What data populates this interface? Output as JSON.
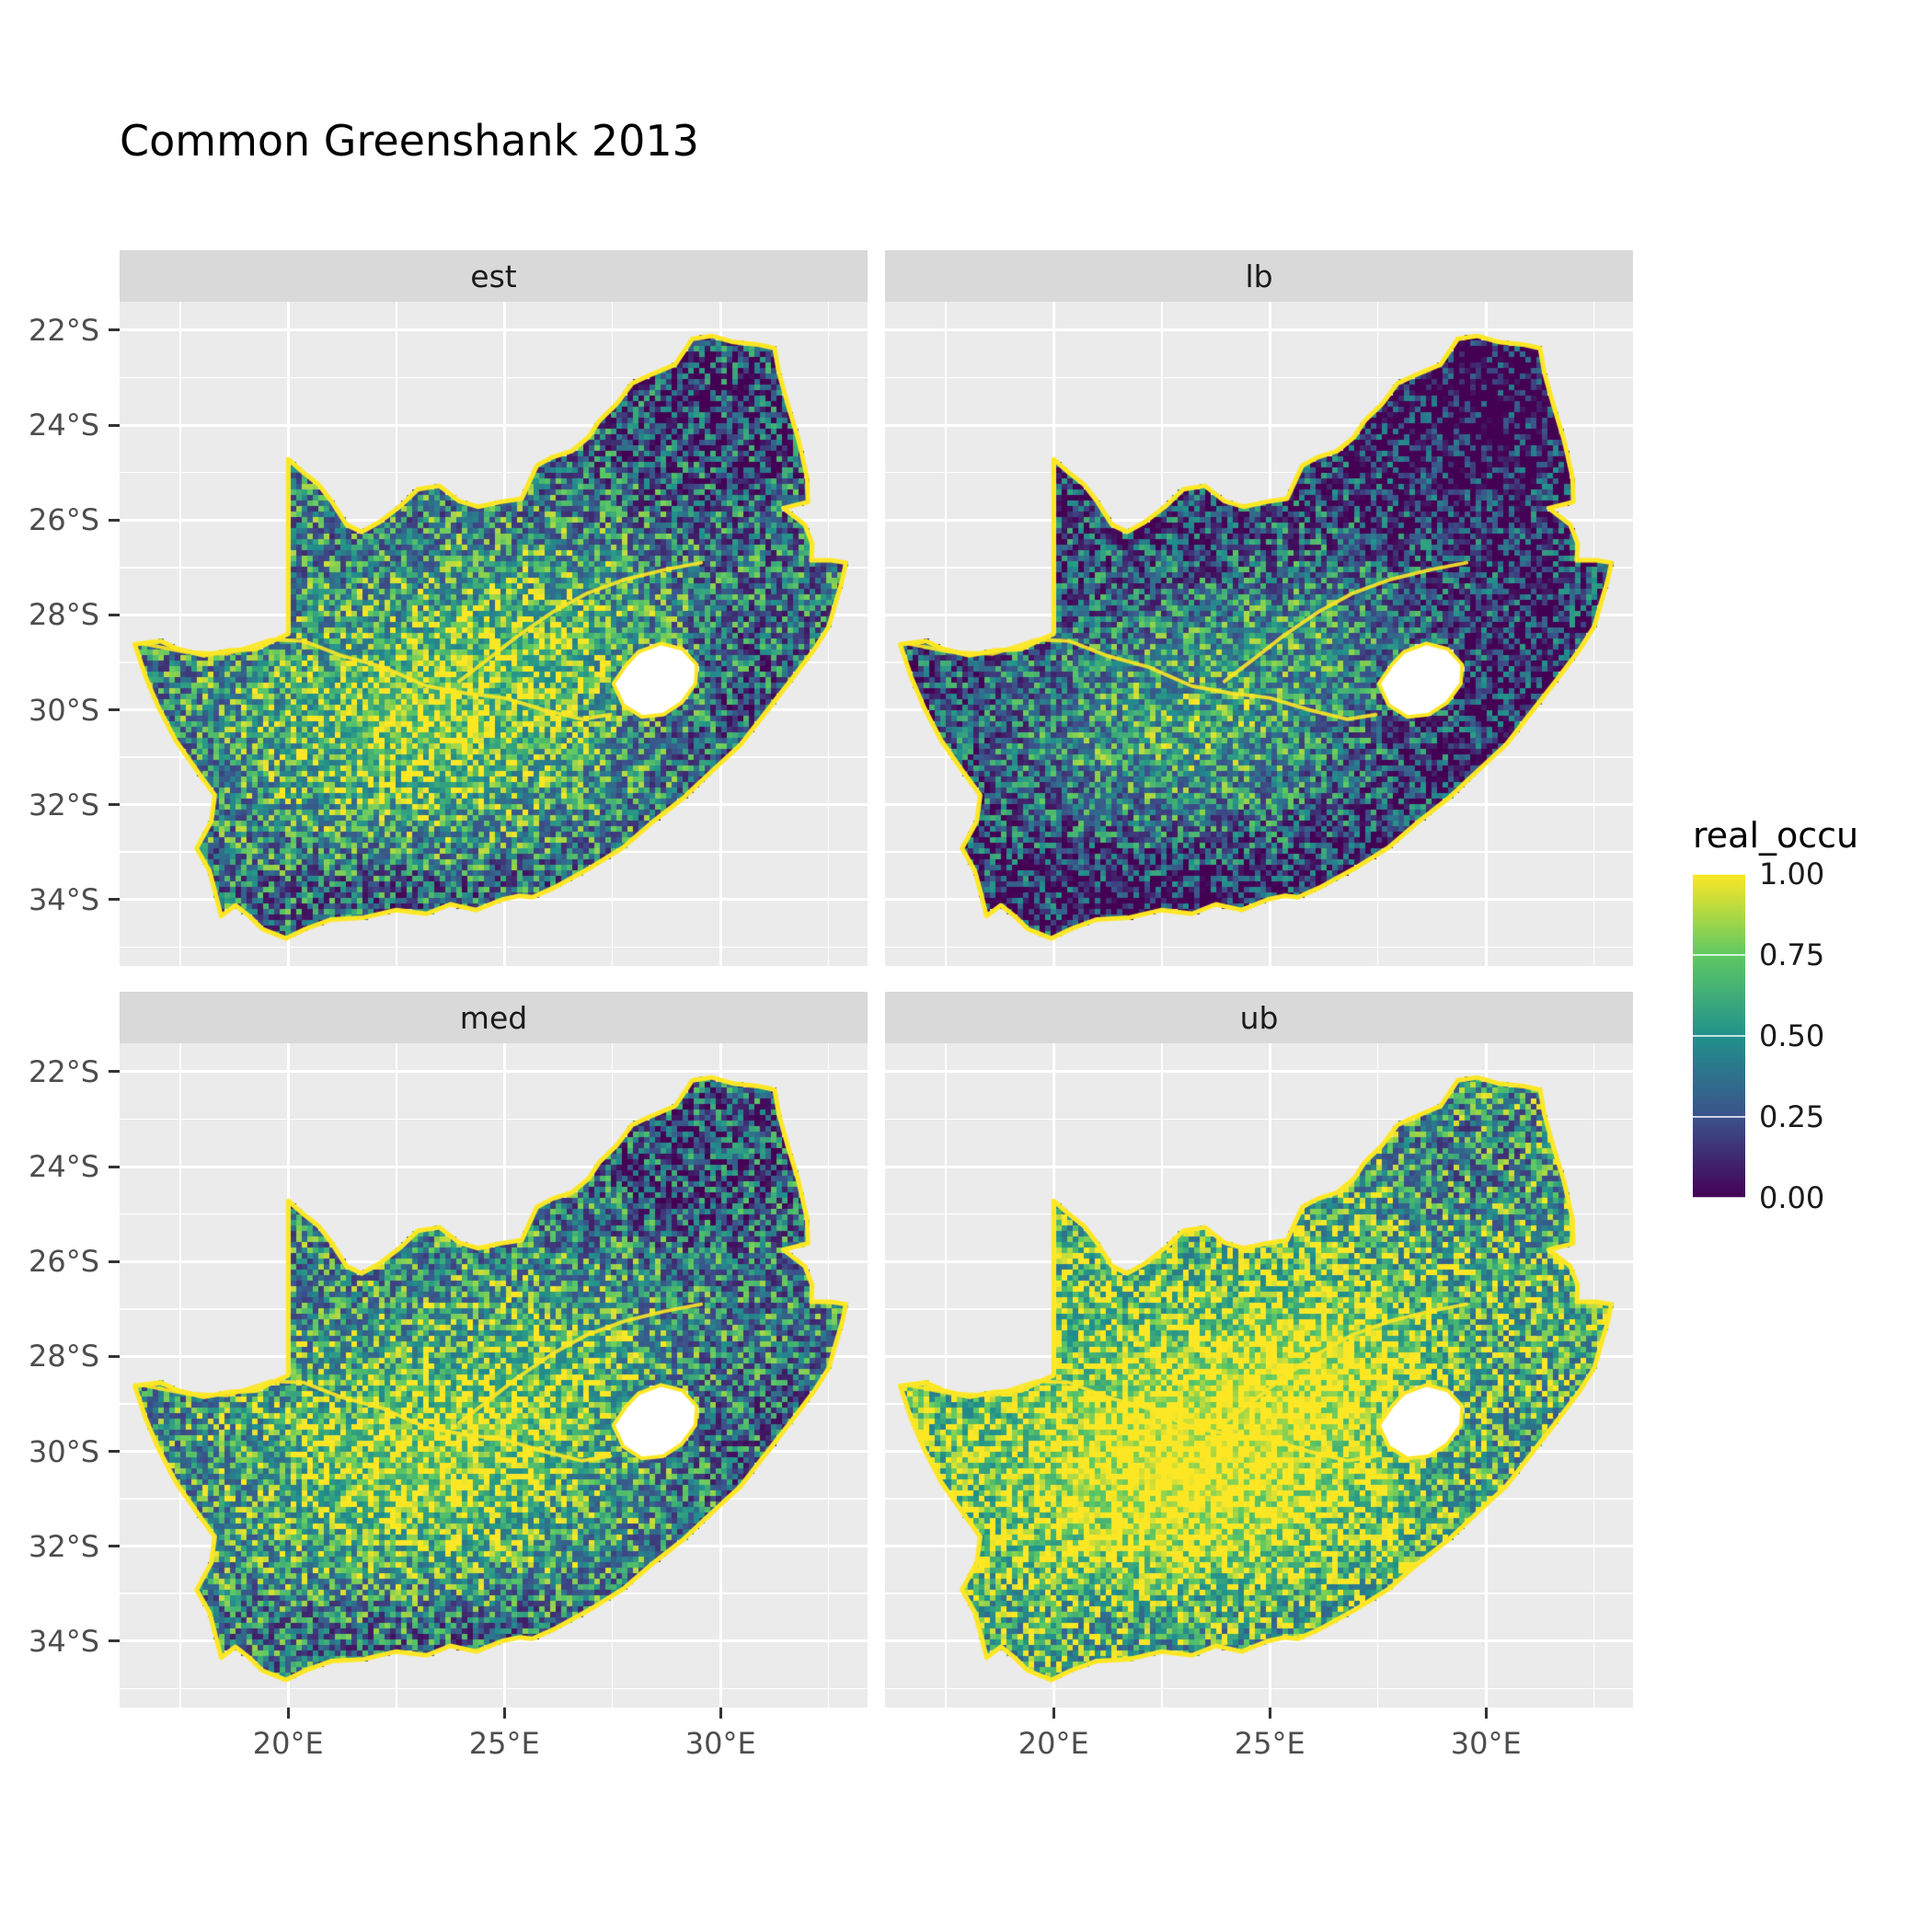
{
  "title": "Common Greenshank 2013",
  "chart_data": {
    "type": "heatmap",
    "subtype": "faceted-raster-map",
    "title": "Common Greenshank 2013",
    "region": "South Africa",
    "facets": [
      {
        "label": "est",
        "offset": 0.0,
        "gain": 1.0,
        "seed": 11
      },
      {
        "label": "lb",
        "offset": -0.18,
        "gain": 0.92,
        "seed": 23
      },
      {
        "label": "med",
        "offset": 0.04,
        "gain": 1.0,
        "seed": 37
      },
      {
        "label": "ub",
        "offset": 0.26,
        "gain": 1.05,
        "seed": 51
      }
    ],
    "x_axis": {
      "ticks": [
        20,
        25,
        30
      ],
      "tick_labels": [
        "20°E",
        "25°E",
        "30°E"
      ],
      "range": [
        16.1,
        33.4
      ]
    },
    "y_axis": {
      "ticks": [
        22,
        24,
        26,
        28,
        30,
        32,
        34
      ],
      "tick_labels": [
        "22°S",
        "24°S",
        "26°S",
        "28°S",
        "30°S",
        "32°S",
        "34°S"
      ],
      "range": [
        21.4,
        35.4
      ]
    },
    "legend": {
      "title": "real_occu",
      "tick_labels": [
        "1.00",
        "0.75",
        "0.50",
        "0.25",
        "0.00"
      ],
      "tick_values": [
        1.0,
        0.75,
        0.5,
        0.25,
        0.0
      ],
      "range": [
        0,
        1
      ],
      "viridis_stops": [
        "#440154",
        "#3b528b",
        "#21918c",
        "#5ec962",
        "#fde725"
      ]
    },
    "raster": {
      "description": "Occupancy probability raster over South Africa (Lesotho excluded); coastline and borders ring bright yellow",
      "value_range": [
        0,
        1
      ]
    },
    "colors": {
      "panel_bg": "#ebebeb",
      "strip_bg": "#d9d9d9",
      "grid_major": "#ffffff",
      "axis_text": "#4d4d4d",
      "strip_text": "#1a1a1a",
      "title_text": "#000000",
      "outline": "#fde725",
      "lesotho_hole": "#ffffff"
    }
  }
}
